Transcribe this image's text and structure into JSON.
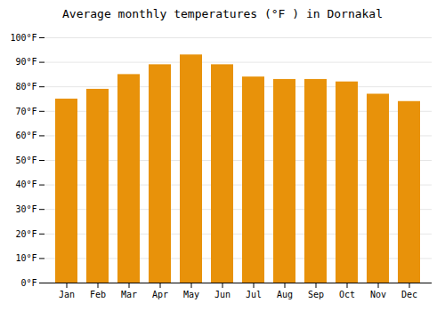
{
  "chart_data": {
    "type": "bar",
    "title": "Average monthly temperatures (°F ) in Dornakal",
    "categories": [
      "Jan",
      "Feb",
      "Mar",
      "Apr",
      "May",
      "Jun",
      "Jul",
      "Aug",
      "Sep",
      "Oct",
      "Nov",
      "Dec"
    ],
    "values": [
      75,
      79,
      85,
      89,
      93,
      89,
      84,
      83,
      83,
      82,
      77,
      74
    ],
    "color": "#E8920A",
    "ylim": [
      0,
      100
    ],
    "yticks": [
      {
        "value": 0,
        "label": "0°F"
      },
      {
        "value": 10,
        "label": "10°F"
      },
      {
        "value": 20,
        "label": "20°F"
      },
      {
        "value": 30,
        "label": "30°F"
      },
      {
        "value": 40,
        "label": "40°F"
      },
      {
        "value": 50,
        "label": "50°F"
      },
      {
        "value": 60,
        "label": "60°F"
      },
      {
        "value": 70,
        "label": "70°F"
      },
      {
        "value": 80,
        "label": "80°F"
      },
      {
        "value": 90,
        "label": "90°F"
      },
      {
        "value": 100,
        "label": "100°F"
      }
    ],
    "grid": true
  }
}
